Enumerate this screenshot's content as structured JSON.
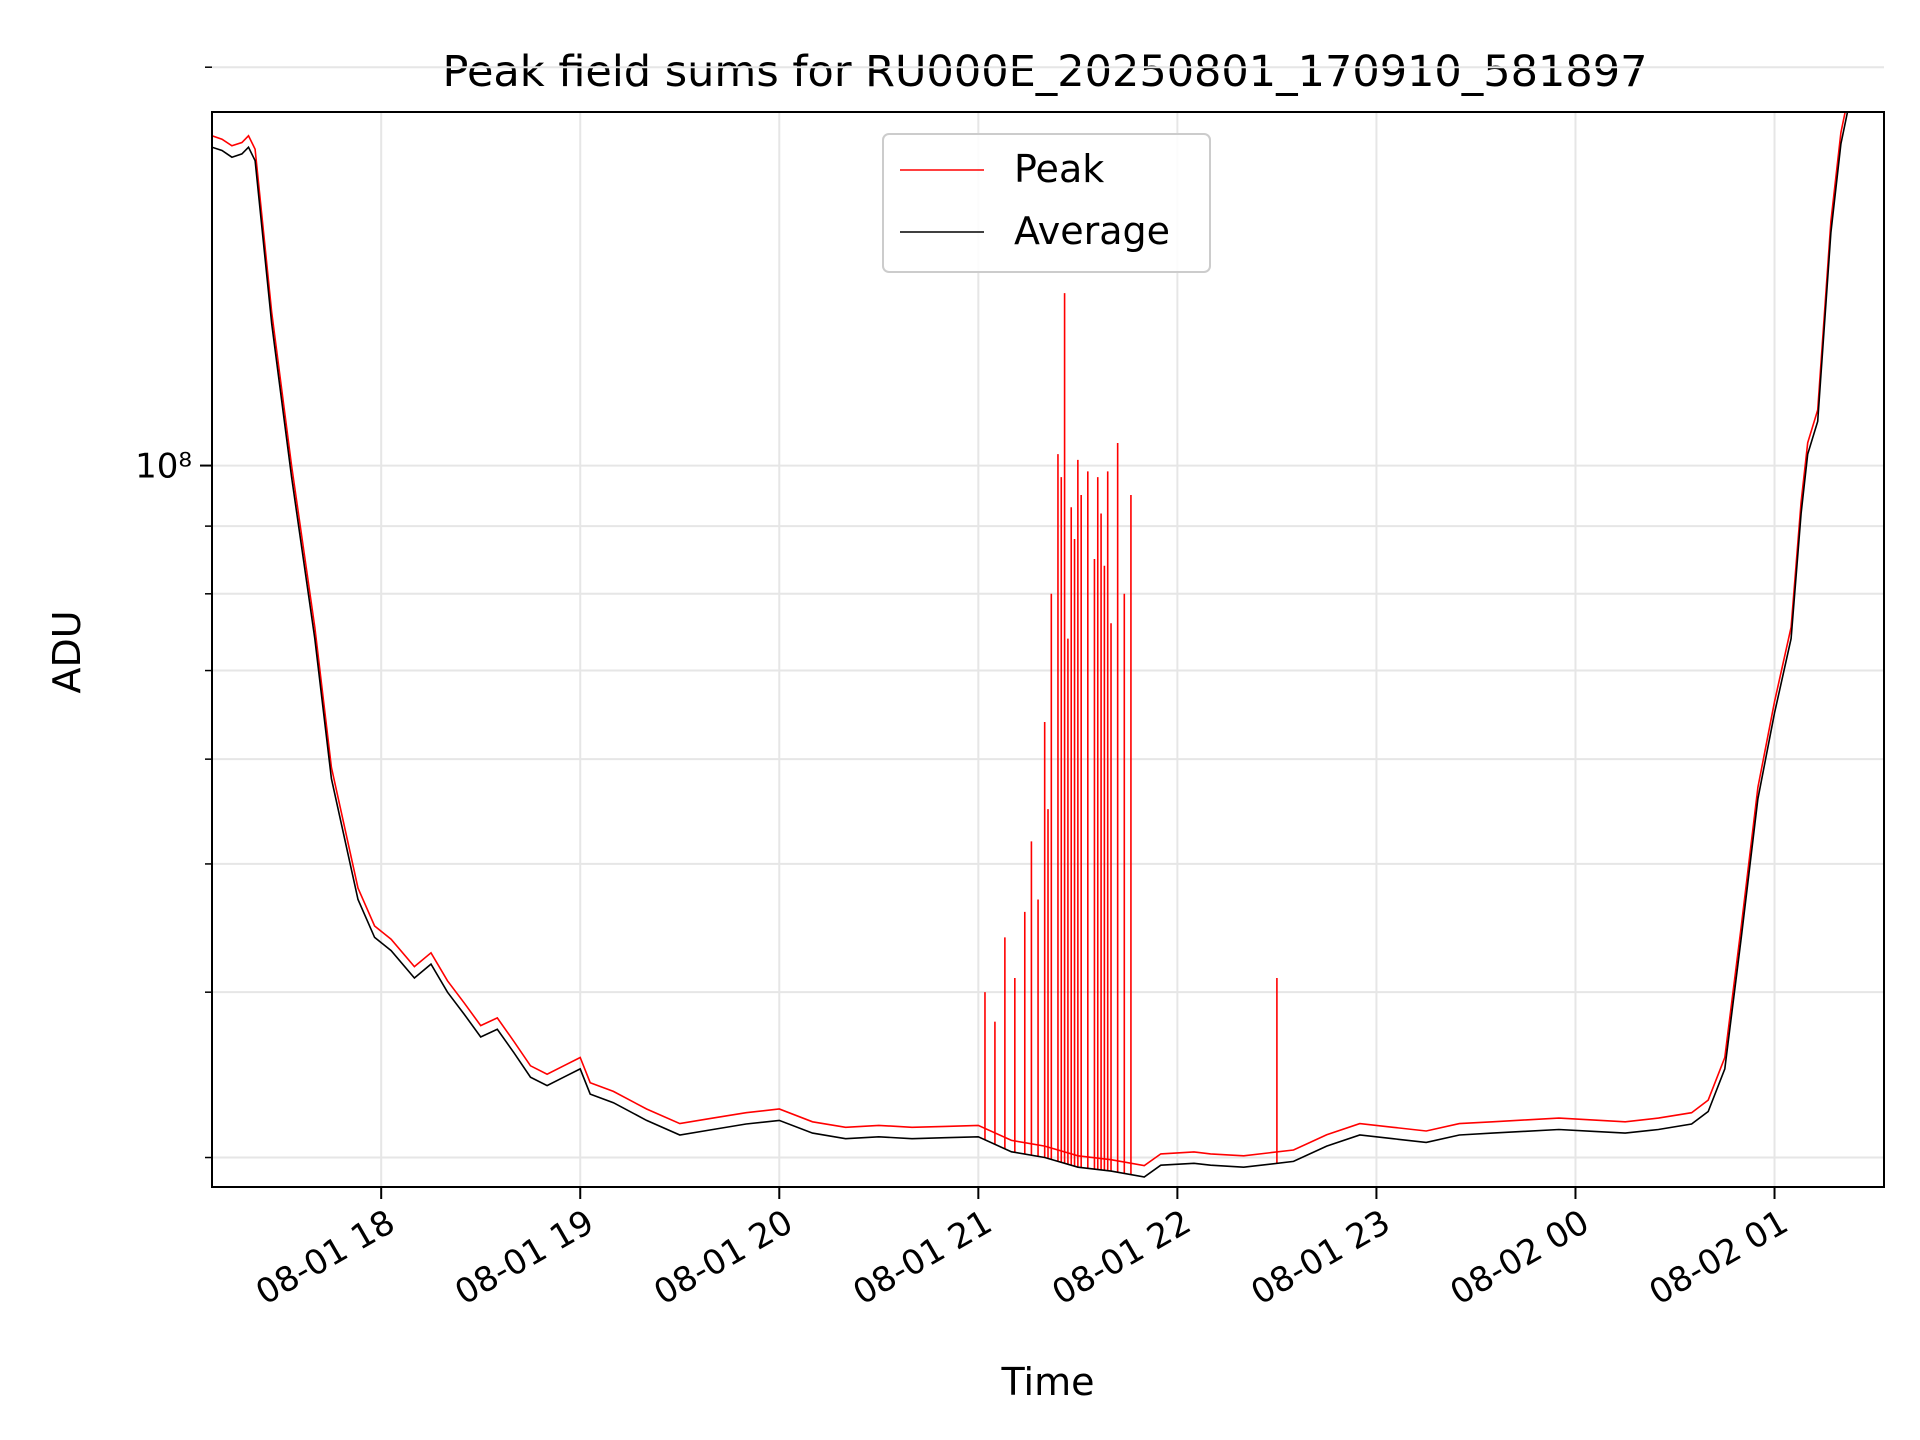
{
  "chart_data": {
    "type": "line",
    "title": "Peak field sums for RU000E_20250801_170910_581897",
    "xlabel": "Time",
    "ylabel": "ADU",
    "y_scale": "log",
    "ylim": [
      28500000,
      185000000
    ],
    "xlim": [
      "08-01 17:09",
      "08-02 01:33"
    ],
    "grid": true,
    "legend": {
      "placement": "upper center"
    },
    "x_ticks": [
      {
        "t": "08-01 18:00",
        "label": "08-01 18"
      },
      {
        "t": "08-01 19:00",
        "label": "08-01 19"
      },
      {
        "t": "08-01 20:00",
        "label": "08-01 20"
      },
      {
        "t": "08-01 21:00",
        "label": "08-01 21"
      },
      {
        "t": "08-01 22:00",
        "label": "08-01 22"
      },
      {
        "t": "08-01 23:00",
        "label": "08-01 23"
      },
      {
        "t": "08-02 00:00",
        "label": "08-02 00"
      },
      {
        "t": "08-02 01:00",
        "label": "08-02 01"
      }
    ],
    "y_major_ticks": [
      {
        "value": 100000000,
        "label": "10⁸"
      }
    ],
    "y_minor_ticks": [
      30000000,
      40000000,
      50000000,
      60000000,
      70000000,
      80000000,
      90000000,
      200000000
    ],
    "series": [
      {
        "name": "Peak",
        "color": "#ff0000",
        "x": [
          "08-01 21:02",
          "08-01 21:05",
          "08-01 21:08",
          "08-01 21:11",
          "08-01 21:14",
          "08-01 21:16",
          "08-01 21:18",
          "08-01 21:20",
          "08-01 21:21",
          "08-01 21:22",
          "08-01 21:24",
          "08-01 21:25",
          "08-01 21:26",
          "08-01 21:27",
          "08-01 21:28",
          "08-01 21:29",
          "08-01 21:30",
          "08-01 21:31",
          "08-01 21:33",
          "08-01 21:35",
          "08-01 21:36",
          "08-01 21:37",
          "08-01 21:38",
          "08-01 21:39",
          "08-01 21:40",
          "08-01 21:42",
          "08-01 21:44",
          "08-01 21:46",
          "08-01 22:30"
        ],
        "values": [
          40000000,
          38000000,
          44000000,
          41000000,
          46000000,
          52000000,
          47000000,
          64000000,
          55000000,
          80000000,
          102000000,
          98000000,
          135000000,
          74000000,
          93000000,
          88000000,
          101000000,
          95000000,
          99000000,
          85000000,
          98000000,
          92000000,
          84000000,
          99000000,
          76000000,
          104000000,
          80000000,
          95000000,
          41000000
        ]
      },
      {
        "name": "Average",
        "color": "#000000",
        "x": [
          "08-01 17:09",
          "08-01 17:12",
          "08-01 17:15",
          "08-01 17:18",
          "08-01 17:20",
          "08-01 17:22",
          "08-01 17:27",
          "08-01 17:33",
          "08-01 17:40",
          "08-01 17:45",
          "08-01 17:53",
          "08-01 17:58",
          "08-01 18:03",
          "08-01 18:10",
          "08-01 18:15",
          "08-01 18:20",
          "08-01 18:25",
          "08-01 18:30",
          "08-01 18:35",
          "08-01 18:40",
          "08-01 18:45",
          "08-01 18:50",
          "08-01 18:55",
          "08-01 19:00",
          "08-01 19:03",
          "08-01 19:10",
          "08-01 19:20",
          "08-01 19:30",
          "08-01 19:40",
          "08-01 19:50",
          "08-01 20:00",
          "08-01 20:10",
          "08-01 20:20",
          "08-01 20:30",
          "08-01 20:40",
          "08-01 20:50",
          "08-01 21:00",
          "08-01 21:10",
          "08-01 21:20",
          "08-01 21:30",
          "08-01 21:40",
          "08-01 21:50",
          "08-01 21:55",
          "08-01 22:05",
          "08-01 22:10",
          "08-01 22:20",
          "08-01 22:35",
          "08-01 22:45",
          "08-01 22:55",
          "08-01 23:05",
          "08-01 23:15",
          "08-01 23:25",
          "08-01 23:35",
          "08-01 23:45",
          "08-01 23:55",
          "08-02 00:05",
          "08-02 00:15",
          "08-02 00:25",
          "08-02 00:35",
          "08-02 00:40",
          "08-02 00:45",
          "08-02 00:50",
          "08-02 00:55",
          "08-02 01:00",
          "08-02 01:05",
          "08-02 01:08",
          "08-02 01:10",
          "08-02 01:13",
          "08-02 01:17",
          "08-02 01:20",
          "08-02 01:22"
        ],
        "values": [
          174000000,
          173000000,
          171000000,
          172000000,
          174000000,
          170000000,
          128000000,
          98000000,
          74000000,
          58000000,
          47000000,
          44000000,
          43000000,
          41000000,
          42000000,
          40000000,
          38500000,
          37000000,
          37500000,
          36000000,
          34500000,
          34000000,
          34500000,
          35000000,
          33500000,
          33000000,
          32000000,
          31200000,
          31500000,
          31800000,
          32000000,
          31300000,
          31000000,
          31100000,
          31000000,
          31050000,
          31100000,
          30300000,
          30000000,
          29500000,
          29300000,
          29000000,
          29600000,
          29700000,
          29600000,
          29500000,
          29800000,
          30600000,
          31200000,
          31000000,
          30800000,
          31200000,
          31300000,
          31400000,
          31500000,
          31400000,
          31300000,
          31500000,
          31800000,
          32500000,
          35000000,
          44000000,
          56000000,
          65000000,
          74000000,
          92000000,
          102000000,
          108000000,
          150000000,
          175000000,
          185000000
        ]
      }
    ]
  }
}
